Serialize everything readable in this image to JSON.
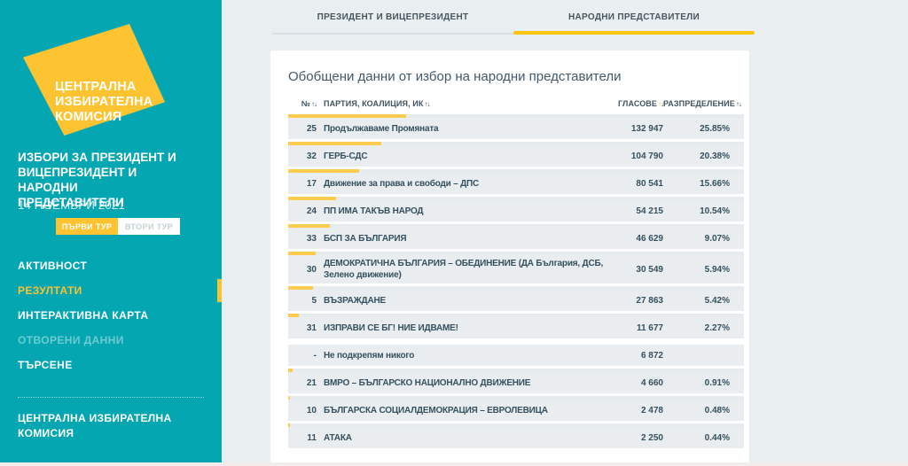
{
  "colors": {
    "sidebar_teal": "#04a6b2",
    "accent_yellow": "#fdc331",
    "tab_underline_yellow": "#fdc408",
    "bar_yellow": "#fccb50",
    "row_background": "#e9edf0",
    "page_background": "#e9eef1",
    "text_dark": "#35505e"
  },
  "sidebar": {
    "logo_text": "ЦЕНТРАЛНА\nИЗБИРАТЕЛНА\nКОМИСИЯ",
    "title": "ИЗБОРИ ЗА ПРЕЗИДЕНТ И\nВИЦЕПРЕЗИДЕНТ И\nНАРОДНИ\nПРЕДСТАВИТЕЛИ",
    "date": "14 НОЕМВРИ 2021",
    "round_toggle": {
      "first_label": "ПЪРВИ ТУР",
      "second_label": "ВТОРИ ТУР",
      "active": "first"
    },
    "menu": [
      {
        "label": "АКТИВНОСТ",
        "active": false,
        "disabled": false
      },
      {
        "label": "РЕЗУЛТАТИ",
        "active": true,
        "disabled": false
      },
      {
        "label": "ИНТЕРАКТИВНА КАРТА",
        "active": false,
        "disabled": false
      },
      {
        "label": "ОТВОРЕНИ ДАННИ",
        "active": false,
        "disabled": true
      },
      {
        "label": "ТЪРСЕНЕ",
        "active": false,
        "disabled": false
      }
    ],
    "footer_link": "ЦЕНТРАЛНА ИЗБИРАТЕЛНА\nКОМИСИЯ"
  },
  "tabs": [
    {
      "label": "ПРЕЗИДЕНТ И ВИЦЕПРЕЗИДЕНТ",
      "active": false
    },
    {
      "label": "НАРОДНИ ПРЕДСТАВИТЕЛИ",
      "active": true
    }
  ],
  "main": {
    "heading": "Обобщени данни от избор на народни представители",
    "table": {
      "columns": [
        {
          "label": "№",
          "sortable": true,
          "sorted": false
        },
        {
          "label": "ПАРТИЯ, КОАЛИЦИЯ, ИК",
          "sortable": true,
          "sorted": false
        },
        {
          "label": "ГЛАСОВЕ",
          "sortable": true,
          "sorted": true
        },
        {
          "label": "РАЗПРЕДЕЛЕНИЕ",
          "sortable": true,
          "sorted": false
        }
      ],
      "rows": [
        {
          "number": "25",
          "name": "Продължаваме Промяната",
          "votes": "132 947",
          "percent": "25.85%",
          "percent_value": 25.85
        },
        {
          "number": "32",
          "name": "ГЕРБ-СДС",
          "votes": "104 790",
          "percent": "20.38%",
          "percent_value": 20.38
        },
        {
          "number": "17",
          "name": "Движение за права и свободи – ДПС",
          "votes": "80 541",
          "percent": "15.66%",
          "percent_value": 15.66
        },
        {
          "number": "24",
          "name": "ПП ИМА ТАКЪВ НАРОД",
          "votes": "54 215",
          "percent": "10.54%",
          "percent_value": 10.54
        },
        {
          "number": "33",
          "name": "БСП ЗА БЪЛГАРИЯ",
          "votes": "46 629",
          "percent": "9.07%",
          "percent_value": 9.07
        },
        {
          "number": "30",
          "name": "ДЕМОКРАТИЧНА БЪЛГАРИЯ – ОБЕДИНЕНИЕ (ДА България, ДСБ, Зелено движение)",
          "votes": "30 549",
          "percent": "5.94%",
          "percent_value": 5.94
        },
        {
          "number": "5",
          "name": "ВЪЗРАЖДАНЕ",
          "votes": "27 863",
          "percent": "5.42%",
          "percent_value": 5.42
        },
        {
          "number": "31",
          "name": "ИЗПРАВИ СЕ БГ! НИЕ ИДВАМЕ!",
          "votes": "11 677",
          "percent": "2.27%",
          "percent_value": 2.27
        },
        {
          "number": "-",
          "name": "Не подкрепям никого",
          "votes": "6 872",
          "percent": "",
          "percent_value": null
        },
        {
          "number": "21",
          "name": "ВМРО – БЪЛГАРСКО НАЦИОНАЛНО ДВИЖЕНИЕ",
          "votes": "4 660",
          "percent": "0.91%",
          "percent_value": 0.91
        },
        {
          "number": "10",
          "name": "БЪЛГАРСКА СОЦИАЛДЕМОКРАЦИЯ – ЕВРОЛЕВИЦА",
          "votes": "2 478",
          "percent": "0.48%",
          "percent_value": 0.48
        },
        {
          "number": "11",
          "name": "АТАКА",
          "votes": "2 250",
          "percent": "0.44%",
          "percent_value": 0.44
        }
      ]
    }
  },
  "icons": {
    "sort_icon": "up-down-arrows",
    "active_menu_marker": "yellow-bar"
  }
}
